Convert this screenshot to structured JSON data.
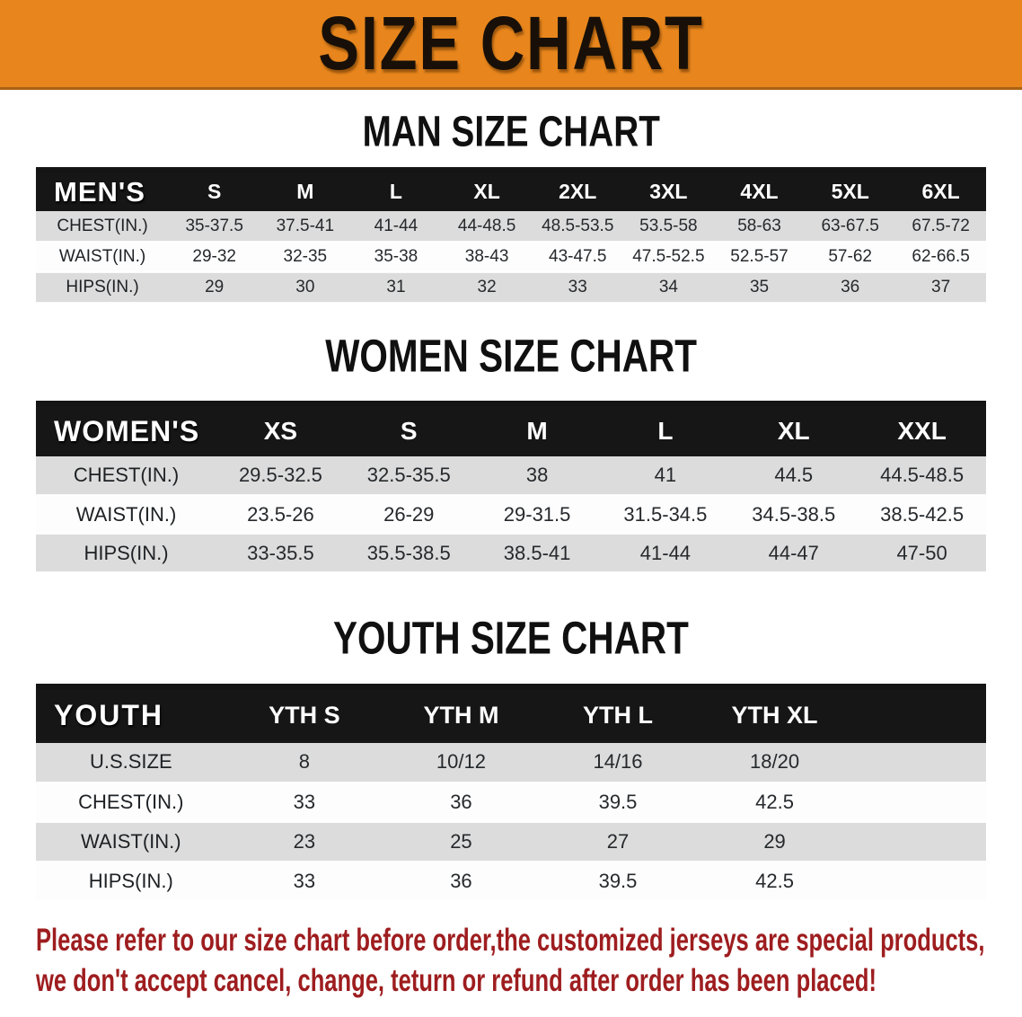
{
  "banner": {
    "title": "SIZE CHART",
    "background_color": "#e8861d",
    "border_color": "#a96114"
  },
  "sections": {
    "men": {
      "heading": "MAN SIZE CHART",
      "table": {
        "header": [
          "MEN'S",
          "S",
          "M",
          "L",
          "XL",
          "2XL",
          "3XL",
          "4XL",
          "5XL",
          "6XL"
        ],
        "rows": [
          {
            "label": "CHEST(IN.)",
            "values": [
              "35-37.5",
              "37.5-41",
              "41-44",
              "44-48.5",
              "48.5-53.5",
              "53.5-58",
              "58-63",
              "63-67.5",
              "67.5-72"
            ]
          },
          {
            "label": "WAIST(IN.)",
            "values": [
              "29-32",
              "32-35",
              "35-38",
              "38-43",
              "43-47.5",
              "47.5-52.5",
              "52.5-57",
              "57-62",
              "62-66.5"
            ]
          },
          {
            "label": "HIPS(IN.)",
            "values": [
              "29",
              "30",
              "31",
              "32",
              "33",
              "34",
              "35",
              "36",
              "37"
            ]
          }
        ]
      }
    },
    "women": {
      "heading": "WOMEN SIZE CHART",
      "table": {
        "header": [
          "WOMEN'S",
          "XS",
          "S",
          "M",
          "L",
          "XL",
          "XXL"
        ],
        "rows": [
          {
            "label": "CHEST(IN.)",
            "values": [
              "29.5-32.5",
              "32.5-35.5",
              "38",
              "41",
              "44.5",
              "44.5-48.5"
            ]
          },
          {
            "label": "WAIST(IN.)",
            "values": [
              "23.5-26",
              "26-29",
              "29-31.5",
              "31.5-34.5",
              "34.5-38.5",
              "38.5-42.5"
            ]
          },
          {
            "label": "HIPS(IN.)",
            "values": [
              "33-35.5",
              "35.5-38.5",
              "38.5-41",
              "41-44",
              "44-47",
              "47-50"
            ]
          }
        ]
      }
    },
    "youth": {
      "heading": "YOUTH SIZE CHART",
      "table": {
        "header": [
          "YOUTH",
          "YTH S",
          "YTH M",
          "YTH L",
          "YTH XL"
        ],
        "rows": [
          {
            "label": "U.S.SIZE",
            "values": [
              "8",
              "10/12",
              "14/16",
              "18/20"
            ]
          },
          {
            "label": "CHEST(IN.)",
            "values": [
              "33",
              "36",
              "39.5",
              "42.5"
            ]
          },
          {
            "label": "WAIST(IN.)",
            "values": [
              "23",
              "25",
              "27",
              "29"
            ]
          },
          {
            "label": "HIPS(IN.)",
            "values": [
              "33",
              "36",
              "39.5",
              "42.5"
            ]
          }
        ]
      }
    }
  },
  "disclaimer": {
    "line1": "Please refer to our size chart before order,the customized jerseys are special products,",
    "line2": "we don't accept cancel, change, teturn or refund after order has been placed!",
    "text_color": "#9e1d1f"
  }
}
